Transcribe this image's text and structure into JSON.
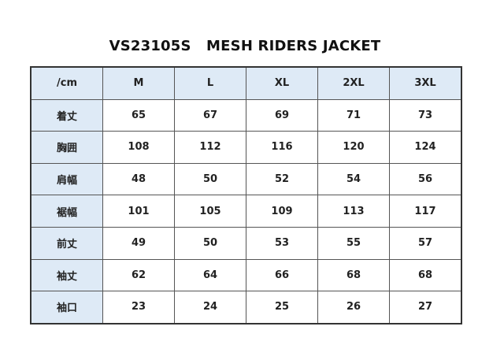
{
  "title": "VS23105S   MESH RIDERS JACKET",
  "table": {
    "corner": "/cm",
    "columns": [
      "M",
      "L",
      "XL",
      "2XL",
      "3XL"
    ],
    "rows": [
      {
        "label": "着丈",
        "values": [
          "65",
          "67",
          "69",
          "71",
          "73"
        ]
      },
      {
        "label": "胸囲",
        "values": [
          "108",
          "112",
          "116",
          "120",
          "124"
        ]
      },
      {
        "label": "肩幅",
        "values": [
          "48",
          "50",
          "52",
          "54",
          "56"
        ]
      },
      {
        "label": "裾幅",
        "values": [
          "101",
          "105",
          "109",
          "113",
          "117"
        ]
      },
      {
        "label": "前丈",
        "values": [
          "49",
          "50",
          "53",
          "55",
          "57"
        ]
      },
      {
        "label": "袖丈",
        "values": [
          "62",
          "64",
          "66",
          "68",
          "68"
        ]
      },
      {
        "label": "袖口",
        "values": [
          "23",
          "24",
          "25",
          "26",
          "27"
        ]
      }
    ]
  },
  "colors": {
    "header_fill": "#deeaf6",
    "border": "#555555"
  }
}
